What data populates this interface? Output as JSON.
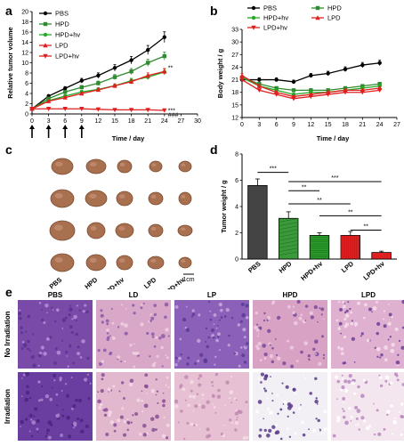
{
  "panels": {
    "a": "a",
    "b": "b",
    "c": "c",
    "d": "d",
    "e": "e"
  },
  "colors": {
    "PBS": "#000000",
    "HPD": "#2e8b2e",
    "HPD+hv": "#22aa22",
    "LPD": "#e02020",
    "LPD+hv": "#e02020"
  },
  "chart_data": [
    {
      "type": "line",
      "panel": "a",
      "xlabel": "Time / day",
      "ylabel": "Relative tumor volume",
      "xlim": [
        0,
        30
      ],
      "ylim": [
        0,
        20
      ],
      "x_ticks": [
        "0",
        "3",
        "6",
        "9",
        "12",
        "15",
        "18",
        "21",
        "24",
        "27",
        "30"
      ],
      "y_ticks": [
        "0",
        "2",
        "4",
        "6",
        "8",
        "10",
        "12",
        "14",
        "16",
        "18",
        "20"
      ],
      "x": [
        0,
        3,
        6,
        9,
        12,
        15,
        18,
        21,
        24
      ],
      "series": [
        {
          "name": "PBS",
          "values": [
            1.0,
            3.5,
            5.0,
            6.5,
            7.5,
            9.0,
            10.5,
            12.5,
            15.0
          ]
        },
        {
          "name": "HPD",
          "values": [
            1.0,
            3.0,
            4.3,
            5.2,
            6.0,
            7.2,
            8.3,
            10.0,
            11.3
          ]
        },
        {
          "name": "HPD+hv",
          "values": [
            1.0,
            2.6,
            3.5,
            4.3,
            4.8,
            5.5,
            6.5,
            7.2,
            8.2
          ]
        },
        {
          "name": "LPD",
          "values": [
            1.0,
            2.5,
            3.2,
            4.0,
            4.7,
            5.5,
            6.3,
            7.5,
            8.3
          ]
        },
        {
          "name": "LPD+hv",
          "values": [
            1.0,
            1.0,
            1.0,
            1.0,
            0.9,
            0.8,
            0.8,
            0.8,
            0.7
          ]
        }
      ],
      "annotations": [
        "**",
        "***",
        "###"
      ],
      "arrows_at": [
        0,
        3,
        6,
        9
      ]
    },
    {
      "type": "line",
      "panel": "b",
      "xlabel": "Time / day",
      "ylabel": "Body weight / g",
      "xlim": [
        0,
        27
      ],
      "ylim": [
        12,
        33
      ],
      "x_ticks": [
        "0",
        "3",
        "6",
        "9",
        "12",
        "15",
        "18",
        "21",
        "24",
        "27"
      ],
      "y_ticks": [
        "12",
        "15",
        "18",
        "21",
        "24",
        "27",
        "30",
        "33"
      ],
      "x": [
        0,
        3,
        6,
        9,
        12,
        15,
        18,
        21,
        24
      ],
      "series": [
        {
          "name": "PBS",
          "values": [
            21.0,
            21.0,
            21.0,
            20.5,
            22.0,
            22.5,
            23.5,
            24.5,
            25.0
          ]
        },
        {
          "name": "HPD",
          "values": [
            21.5,
            20.0,
            19.0,
            18.5,
            18.5,
            18.5,
            19.0,
            19.5,
            20.0
          ]
        },
        {
          "name": "HPD+hv",
          "values": [
            21.5,
            19.5,
            18.5,
            17.5,
            18.0,
            18.0,
            18.5,
            19.0,
            19.5
          ]
        },
        {
          "name": "LPD",
          "values": [
            22.0,
            19.5,
            18.0,
            17.0,
            17.5,
            18.0,
            18.5,
            18.5,
            19.0
          ]
        },
        {
          "name": "LPD+hv",
          "values": [
            21.0,
            18.5,
            17.5,
            16.5,
            17.0,
            17.5,
            18.0,
            18.0,
            18.5
          ]
        }
      ]
    },
    {
      "type": "bar",
      "panel": "d",
      "ylabel": "Tumor weight / g",
      "ylim": [
        0,
        8
      ],
      "y_ticks": [
        "0",
        "2",
        "4",
        "6",
        "8"
      ],
      "categories": [
        "PBS",
        "HPD",
        "HPD+hv",
        "LPD",
        "LPD+hv"
      ],
      "values": [
        5.6,
        3.1,
        1.8,
        1.8,
        0.5
      ],
      "errors": [
        0.5,
        0.5,
        0.2,
        0.3,
        0.1
      ],
      "significance": [
        {
          "from": "PBS",
          "to": "HPD",
          "label": "***"
        },
        {
          "from": "HPD",
          "to": "HPD+hv",
          "label": "**"
        },
        {
          "from": "HPD",
          "to": "LPD",
          "label": "**"
        },
        {
          "from": "HPD",
          "to": "LPD+hv",
          "label": "***"
        },
        {
          "from": "HPD+hv",
          "to": "LPD+hv",
          "label": "**"
        },
        {
          "from": "LPD",
          "to": "LPD+hv",
          "label": "**"
        }
      ]
    }
  ],
  "panel_c": {
    "labels": [
      "PBS",
      "HPD",
      "HPD+hv",
      "LPD",
      "LPD+hv"
    ],
    "scale_bar": "1cm"
  },
  "panel_e": {
    "columns": [
      "PBS",
      "LD",
      "LP",
      "HPD",
      "LPD"
    ],
    "rows": [
      "No Irradiation",
      "Irradiation"
    ]
  }
}
